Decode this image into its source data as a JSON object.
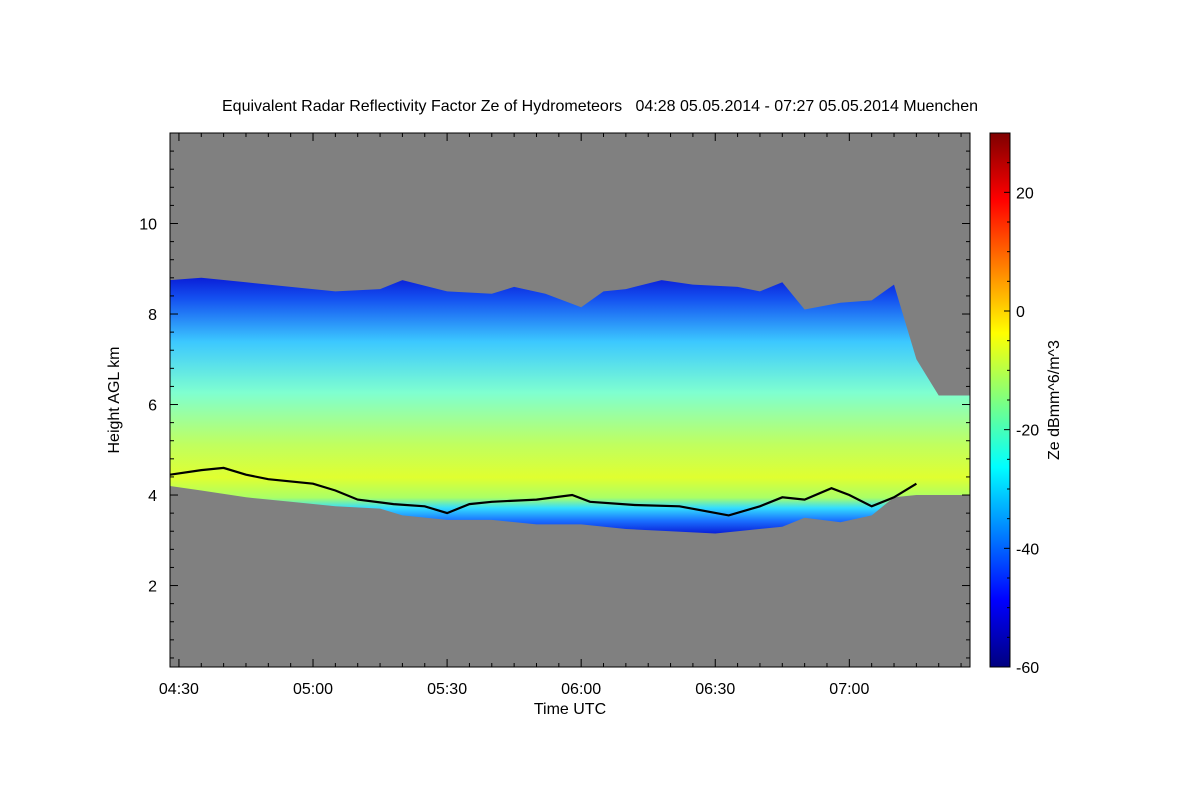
{
  "title": "Equivalent Radar Reflectivity Factor Ze of Hydrometeors   04:28 05.05.2014 - 07:27 05.05.2014 Muenchen",
  "colors": {
    "background": "#808080",
    "cloud_base_line": "#000000"
  },
  "chart_data": {
    "type": "heatmap",
    "title": "Equivalent Radar Reflectivity Factor Ze of Hydrometeors   04:28 05.05.2014 - 07:27 05.05.2014 Muenchen",
    "xlabel": "Time UTC",
    "ylabel": "Height AGL km",
    "x_ticks": [
      "04:30",
      "05:00",
      "05:30",
      "06:00",
      "06:30",
      "07:00"
    ],
    "x_tick_minutes": [
      270,
      300,
      330,
      360,
      390,
      420
    ],
    "xlim_minutes": [
      268,
      447
    ],
    "y_ticks": [
      2,
      4,
      6,
      8,
      10
    ],
    "ylim": [
      0.2,
      12.0
    ],
    "colorbar": {
      "label": "Ze dBmm^6/m^3",
      "ticks": [
        20,
        0,
        -20,
        -40,
        -60
      ],
      "range": [
        -60,
        30
      ],
      "colormap": [
        "#00007f",
        "#0000ff",
        "#007fff",
        "#00ffff",
        "#7fff7f",
        "#ffff00",
        "#ff7f00",
        "#ff0000",
        "#7f0000"
      ]
    },
    "cloud_top_km": [
      [
        268,
        8.75
      ],
      [
        275,
        8.8
      ],
      [
        285,
        8.7
      ],
      [
        295,
        8.6
      ],
      [
        305,
        8.5
      ],
      [
        315,
        8.55
      ],
      [
        320,
        8.75
      ],
      [
        330,
        8.5
      ],
      [
        340,
        8.45
      ],
      [
        345,
        8.6
      ],
      [
        352,
        8.45
      ],
      [
        360,
        8.15
      ],
      [
        365,
        8.5
      ],
      [
        370,
        8.55
      ],
      [
        378,
        8.75
      ],
      [
        385,
        8.65
      ],
      [
        395,
        8.6
      ],
      [
        400,
        8.5
      ],
      [
        405,
        8.7
      ],
      [
        410,
        8.1
      ],
      [
        418,
        8.25
      ],
      [
        425,
        8.3
      ],
      [
        430,
        8.65
      ],
      [
        435,
        7.0
      ],
      [
        440,
        6.2
      ],
      [
        447,
        6.2
      ]
    ],
    "cloud_bottom_km": [
      [
        268,
        4.2
      ],
      [
        275,
        4.1
      ],
      [
        285,
        3.95
      ],
      [
        295,
        3.85
      ],
      [
        305,
        3.75
      ],
      [
        315,
        3.7
      ],
      [
        320,
        3.55
      ],
      [
        330,
        3.45
      ],
      [
        340,
        3.45
      ],
      [
        350,
        3.35
      ],
      [
        360,
        3.35
      ],
      [
        370,
        3.25
      ],
      [
        380,
        3.2
      ],
      [
        390,
        3.15
      ],
      [
        395,
        3.2
      ],
      [
        405,
        3.3
      ],
      [
        410,
        3.5
      ],
      [
        418,
        3.4
      ],
      [
        425,
        3.55
      ],
      [
        430,
        3.95
      ],
      [
        435,
        4.0
      ],
      [
        447,
        4.0
      ]
    ],
    "cloud_base_line_km": [
      [
        268,
        4.45
      ],
      [
        275,
        4.55
      ],
      [
        280,
        4.6
      ],
      [
        285,
        4.45
      ],
      [
        290,
        4.35
      ],
      [
        300,
        4.25
      ],
      [
        305,
        4.1
      ],
      [
        310,
        3.9
      ],
      [
        318,
        3.8
      ],
      [
        325,
        3.75
      ],
      [
        330,
        3.6
      ],
      [
        335,
        3.8
      ],
      [
        340,
        3.85
      ],
      [
        350,
        3.9
      ],
      [
        358,
        4.0
      ],
      [
        362,
        3.85
      ],
      [
        372,
        3.78
      ],
      [
        382,
        3.75
      ],
      [
        393,
        3.55
      ],
      [
        400,
        3.75
      ],
      [
        405,
        3.95
      ],
      [
        410,
        3.9
      ],
      [
        416,
        4.15
      ],
      [
        420,
        4.0
      ],
      [
        425,
        3.75
      ],
      [
        430,
        3.95
      ],
      [
        435,
        4.25
      ]
    ]
  }
}
